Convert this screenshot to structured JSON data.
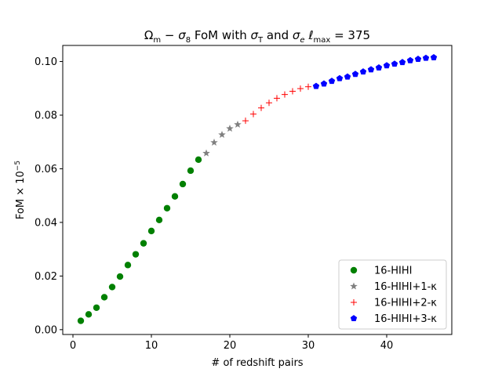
{
  "chart_data": {
    "type": "scatter",
    "title": {
      "omega_sym": "Ω",
      "omega_sub": "m",
      "dash": " − ",
      "sigma8_sym": "σ",
      "sigma8_sub": "8",
      "mid": " FoM with ",
      "sigmaT_sym": "σ",
      "sigmaT_sub": "T",
      "and": " and ",
      "sigmae_sym": "σ",
      "sigmae_sub": "e",
      "ell_sym": " ℓ",
      "ell_sub": "max",
      "tail": " = 375"
    },
    "xlabel": "# of redshift pairs",
    "ylabel": {
      "main": "FoM × 10",
      "exp": "−5"
    },
    "xlim": [
      -1.3,
      48.3
    ],
    "ylim": [
      -0.0018,
      0.106
    ],
    "xticks": [
      0,
      10,
      20,
      30,
      40
    ],
    "xtick_labels": [
      "0",
      "10",
      "20",
      "30",
      "40"
    ],
    "yticks": [
      0.0,
      0.02,
      0.04,
      0.06,
      0.08,
      0.1
    ],
    "ytick_labels": [
      "0.00",
      "0.02",
      "0.04",
      "0.06",
      "0.08",
      "0.10"
    ],
    "grid": false,
    "legend_position": "bottom-right",
    "series": [
      {
        "name": "16-HIHI",
        "marker": "circle",
        "color": "#008000",
        "x": [
          1,
          2,
          3,
          4,
          5,
          6,
          7,
          8,
          9,
          10,
          11,
          12,
          13,
          14,
          15,
          16
        ],
        "y": [
          0.0033,
          0.0057,
          0.0082,
          0.0121,
          0.0159,
          0.0198,
          0.0241,
          0.0281,
          0.0322,
          0.0368,
          0.0409,
          0.0453,
          0.0497,
          0.0543,
          0.0593,
          0.0634
        ]
      },
      {
        "name": "16-HIHI+1-κ",
        "marker": "star",
        "color": "#808080",
        "x": [
          17,
          18,
          19,
          20,
          21
        ],
        "y": [
          0.0658,
          0.0698,
          0.0727,
          0.075,
          0.0765
        ]
      },
      {
        "name": "16-HIHI+2-κ",
        "marker": "plus",
        "color": "#ff0000",
        "x": [
          22,
          23,
          24,
          25,
          26,
          27,
          28,
          29,
          30
        ],
        "y": [
          0.0779,
          0.0804,
          0.0827,
          0.0846,
          0.0863,
          0.0877,
          0.0889,
          0.0899,
          0.0906
        ]
      },
      {
        "name": "16-HIHI+3-κ",
        "marker": "pentagon",
        "color": "#0000ff",
        "x": [
          31,
          32,
          33,
          34,
          35,
          36,
          37,
          38,
          39,
          40,
          41,
          42,
          43,
          44,
          45,
          46
        ],
        "y": [
          0.0908,
          0.0917,
          0.0927,
          0.0937,
          0.0943,
          0.0953,
          0.0962,
          0.097,
          0.0977,
          0.0985,
          0.0991,
          0.0997,
          0.1004,
          0.1009,
          0.1013,
          0.1015
        ]
      }
    ]
  }
}
